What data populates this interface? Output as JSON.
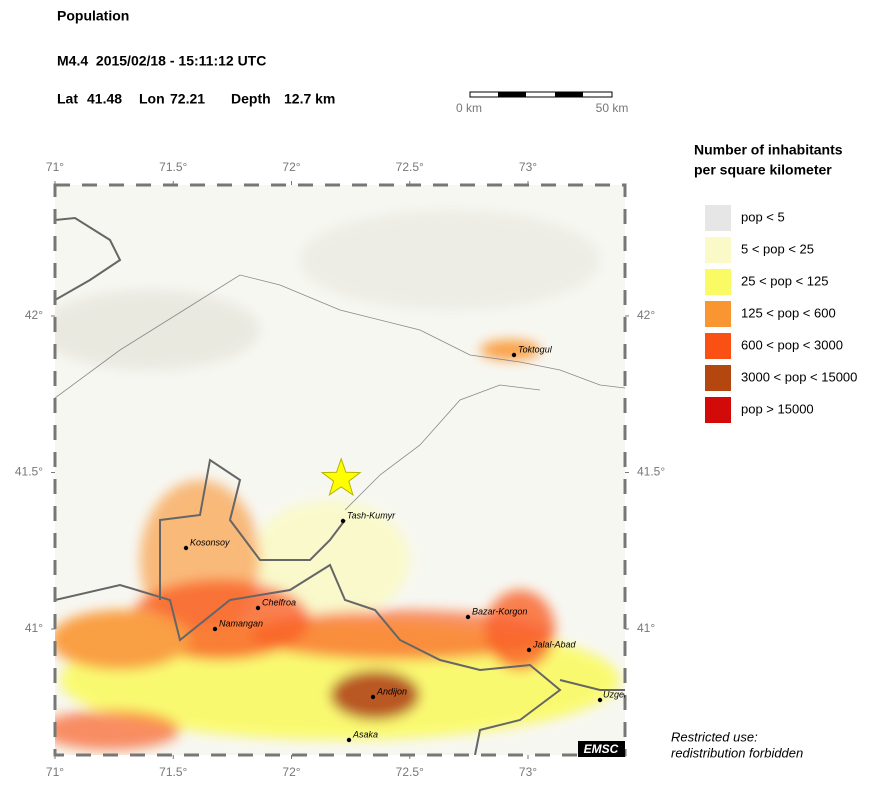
{
  "header": {
    "title": "Population",
    "event": "M4.4  2015/02/18 - 15:11:12 UTC",
    "lat_label": "Lat",
    "lat": 41.48,
    "lon_label": "Lon",
    "lon": 72.21,
    "depth_label": "Depth",
    "depth": "12.7 km"
  },
  "scale_bar": {
    "start": "0 km",
    "end": "50 km"
  },
  "map": {
    "lon_ticks": [
      {
        "value": 71,
        "label": "71°"
      },
      {
        "value": 71.5,
        "label": "71.5°"
      },
      {
        "value": 72,
        "label": "72°"
      },
      {
        "value": 72.5,
        "label": "72.5°"
      },
      {
        "value": 73,
        "label": "73°"
      }
    ],
    "lat_ticks": [
      {
        "value": 42,
        "label": "42°"
      },
      {
        "value": 41.5,
        "label": "41.5°"
      },
      {
        "value": 41,
        "label": "41°"
      }
    ],
    "cities": [
      "Toktogul",
      "Tash-Kumyr",
      "Kosonsoy",
      "Chelfroa",
      "Namangan",
      "Bazar-Korgon",
      "Jalal-Abad",
      "Andijon",
      "Asaka",
      "Uzgen"
    ],
    "credit": "EMSC"
  },
  "legend": {
    "title": [
      "Number of inhabitants",
      "per square kilometer"
    ],
    "items": [
      {
        "label": "pop < 5",
        "color": "#e6e6e6"
      },
      {
        "label": "5 < pop < 25",
        "color": "#fafac8"
      },
      {
        "label": "25 < pop < 125",
        "color": "#fafa64"
      },
      {
        "label": "125 < pop < 600",
        "color": "#fa9632"
      },
      {
        "label": "600 < pop < 3000",
        "color": "#fa5014"
      },
      {
        "label": "3000 < pop < 15000",
        "color": "#b4460f"
      },
      {
        "label": "pop > 15000",
        "color": "#d20a0a"
      }
    ]
  },
  "notice": [
    "Restricted use:",
    "redistribution forbidden"
  ]
}
